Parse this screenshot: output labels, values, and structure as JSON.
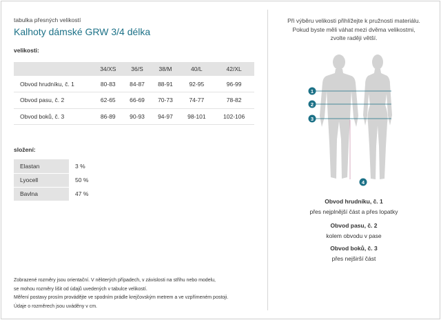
{
  "header": {
    "subtitle": "tabulka přesných velikostí",
    "title": "Kalhoty dámské GRW 3/4 délka"
  },
  "sizes": {
    "heading": "velikosti:",
    "columns": [
      "34/XS",
      "36/S",
      "38/M",
      "40/L",
      "42/XL"
    ],
    "rows": [
      {
        "label": "Obvod hrudníku, č. 1",
        "values": [
          "80-83",
          "84-87",
          "88-91",
          "92-95",
          "96-99"
        ]
      },
      {
        "label": "Obvod pasu, č. 2",
        "values": [
          "62-65",
          "66-69",
          "70-73",
          "74-77",
          "78-82"
        ]
      },
      {
        "label": "Obvod boků, č. 3",
        "values": [
          "86-89",
          "90-93",
          "94-97",
          "98-101",
          "102-106"
        ]
      }
    ]
  },
  "composition": {
    "heading": "složení:",
    "rows": [
      {
        "material": "Elastan",
        "percent": "3 %"
      },
      {
        "material": "Lyocell",
        "percent": "50 %"
      },
      {
        "material": "Bavlna",
        "percent": "47 %"
      }
    ]
  },
  "notes": [
    "Zobrazené rozměry jsou orientační. V některých případech, v závislosti na střihu nebo modelu,",
    "se mohou rozměry lišit od údajů uvedených v tabulce velikostí.",
    "Měření postavy prosím provádějte ve spodním prádle krejčovským metrem a ve vzpřímeném postoji.",
    "Údaje o rozměrech jsou uváděny v cm."
  ],
  "advice": [
    "Při výběru velikosti přihlížejte k pružnosti materiálu.",
    "Pokud byste měli váhat mezi dvěma velikostmi,",
    "zvolte raději větší."
  ],
  "figure": {
    "markers": [
      "1",
      "2",
      "3",
      "4"
    ],
    "accent_color": "#1c7187"
  },
  "legend": [
    {
      "title": "Obvod hrudníku, č. 1",
      "desc": "přes nejplnější část a přes lopatky"
    },
    {
      "title": "Obvod pasu, č. 2",
      "desc": "kolem obvodu v pase"
    },
    {
      "title": "Obvod boků, č. 3",
      "desc": "přes nejširší část"
    }
  ]
}
